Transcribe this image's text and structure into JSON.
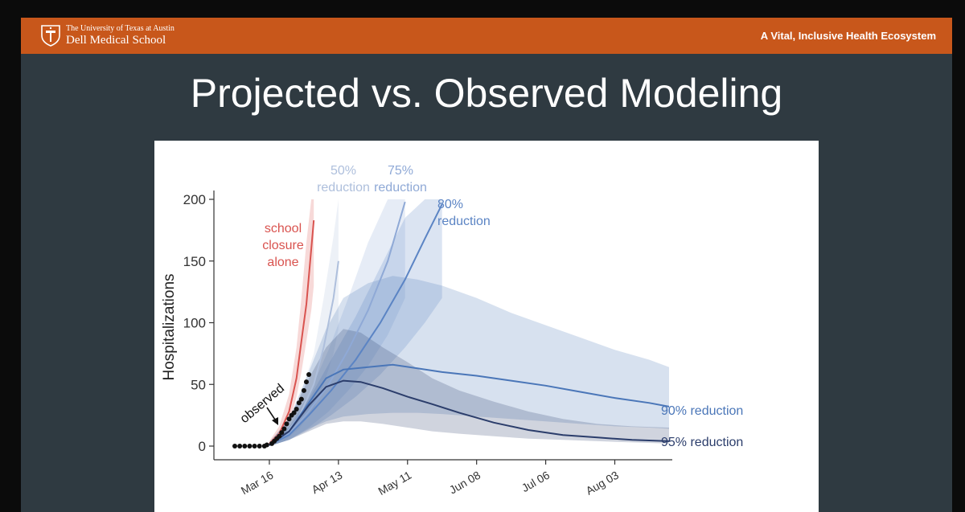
{
  "header": {
    "university": "The University of Texas at Austin",
    "school": "Dell Medical School",
    "tagline": "A Vital, Inclusive Health Ecosystem"
  },
  "slide": {
    "title": "Projected vs. Observed Modeling"
  },
  "colors": {
    "banner": "#c8571b",
    "slide_bg": "#2f3a41",
    "school_closure": "#d9534f",
    "reduction_50": "#aebfdc",
    "reduction_75": "#8fa9d6",
    "reduction_80": "#5b84c4",
    "reduction_90": "#4a76b8",
    "reduction_95": "#2b3d6b",
    "observed": "#111111"
  },
  "chart_data": {
    "type": "line",
    "xlabel": "",
    "ylabel": "Hospitalizations",
    "ylim": [
      0,
      200
    ],
    "yticks": [
      0,
      50,
      100,
      150,
      200
    ],
    "xlim": [
      "2020-03-02",
      "2020-08-25"
    ],
    "xticks": [
      {
        "date": "2020-03-16",
        "label": "Mar 16"
      },
      {
        "date": "2020-04-13",
        "label": "Apr 13"
      },
      {
        "date": "2020-05-11",
        "label": "May 11"
      },
      {
        "date": "2020-06-08",
        "label": "Jun 08"
      },
      {
        "date": "2020-07-06",
        "label": "Jul 06"
      },
      {
        "date": "2020-08-03",
        "label": "Aug 03"
      }
    ],
    "grid": false,
    "series": [
      {
        "name": "school closure alone",
        "label_lines": [
          "school",
          "closure",
          "alone"
        ],
        "color": "#d9534f",
        "x": [
          "2020-03-16",
          "2020-03-20",
          "2020-03-24",
          "2020-03-27",
          "2020-03-29",
          "2020-03-31",
          "2020-04-02",
          "2020-04-03"
        ],
        "y": [
          2,
          10,
          28,
          55,
          85,
          115,
          160,
          183
        ],
        "band_low": [
          1,
          6,
          18,
          40,
          60,
          85,
          110,
          130
        ],
        "band_high": [
          4,
          16,
          42,
          80,
          120,
          165,
          200,
          200
        ]
      },
      {
        "name": "50% reduction",
        "label_lines": [
          "50%",
          "reduction"
        ],
        "color": "#aebfdc",
        "x": [
          "2020-03-16",
          "2020-03-22",
          "2020-03-28",
          "2020-04-03",
          "2020-04-07",
          "2020-04-11",
          "2020-04-13"
        ],
        "y": [
          1,
          8,
          24,
          50,
          80,
          120,
          150
        ],
        "band_low": [
          0,
          4,
          14,
          30,
          50,
          75,
          95
        ],
        "band_high": [
          3,
          14,
          38,
          75,
          120,
          170,
          200
        ]
      },
      {
        "name": "75% reduction",
        "label_lines": [
          "75%",
          "reduction"
        ],
        "color": "#8fa9d6",
        "x": [
          "2020-03-16",
          "2020-03-24",
          "2020-04-01",
          "2020-04-09",
          "2020-04-17",
          "2020-04-25",
          "2020-05-03",
          "2020-05-10"
        ],
        "y": [
          1,
          10,
          28,
          50,
          78,
          110,
          150,
          198
        ],
        "band_low": [
          0,
          5,
          15,
          28,
          45,
          65,
          90,
          120
        ],
        "band_high": [
          3,
          16,
          42,
          78,
          120,
          165,
          200,
          200
        ]
      },
      {
        "name": "80% reduction",
        "label_lines": [
          "80%",
          "reduction"
        ],
        "color": "#5b84c4",
        "x": [
          "2020-03-16",
          "2020-03-24",
          "2020-04-01",
          "2020-04-10",
          "2020-04-20",
          "2020-04-30",
          "2020-05-10",
          "2020-05-18",
          "2020-05-25"
        ],
        "y": [
          1,
          9,
          25,
          45,
          70,
          100,
          135,
          168,
          196
        ],
        "band_low": [
          0,
          5,
          13,
          25,
          40,
          58,
          80,
          100,
          120
        ],
        "band_high": [
          3,
          15,
          38,
          70,
          105,
          145,
          185,
          200,
          200
        ]
      },
      {
        "name": "90% reduction",
        "color": "#4a76b8",
        "x": [
          "2020-03-16",
          "2020-03-24",
          "2020-04-01",
          "2020-04-08",
          "2020-04-15",
          "2020-04-25",
          "2020-05-05",
          "2020-05-15",
          "2020-05-25",
          "2020-06-08",
          "2020-06-22",
          "2020-07-06",
          "2020-07-20",
          "2020-08-03",
          "2020-08-17",
          "2020-08-25"
        ],
        "y": [
          1,
          12,
          35,
          55,
          62,
          64,
          66,
          63,
          60,
          57,
          53,
          49,
          44,
          39,
          35,
          32
        ],
        "band_low": [
          0,
          5,
          14,
          20,
          24,
          26,
          27,
          27,
          26,
          24,
          22,
          20,
          18,
          16,
          15,
          14
        ],
        "band_high": [
          3,
          22,
          60,
          95,
          120,
          132,
          138,
          135,
          130,
          120,
          108,
          98,
          88,
          78,
          70,
          64
        ]
      },
      {
        "name": "95% reduction",
        "color": "#2b3d6b",
        "x": [
          "2020-03-16",
          "2020-03-24",
          "2020-04-01",
          "2020-04-08",
          "2020-04-15",
          "2020-04-22",
          "2020-05-01",
          "2020-05-11",
          "2020-05-21",
          "2020-06-01",
          "2020-06-15",
          "2020-06-29",
          "2020-07-13",
          "2020-07-27",
          "2020-08-10",
          "2020-08-25"
        ],
        "y": [
          1,
          12,
          33,
          48,
          53,
          52,
          47,
          40,
          34,
          27,
          19,
          13,
          9,
          7,
          5,
          4
        ],
        "band_low": [
          0,
          5,
          12,
          18,
          20,
          20,
          18,
          15,
          12,
          10,
          8,
          6,
          5,
          4,
          3,
          2
        ],
        "band_high": [
          3,
          22,
          55,
          80,
          95,
          92,
          80,
          68,
          55,
          45,
          36,
          28,
          22,
          18,
          16,
          15
        ]
      }
    ],
    "observed": {
      "label": "observed",
      "x": [
        "2020-03-02",
        "2020-03-04",
        "2020-03-06",
        "2020-03-08",
        "2020-03-10",
        "2020-03-12",
        "2020-03-14",
        "2020-03-15",
        "2020-03-17",
        "2020-03-18",
        "2020-03-19",
        "2020-03-20",
        "2020-03-21",
        "2020-03-22",
        "2020-03-23",
        "2020-03-24",
        "2020-03-25",
        "2020-03-26",
        "2020-03-27",
        "2020-03-28",
        "2020-03-29",
        "2020-03-30",
        "2020-03-31",
        "2020-04-01"
      ],
      "y": [
        0,
        0,
        0,
        0,
        0,
        0,
        0,
        1,
        2,
        4,
        6,
        8,
        11,
        14,
        18,
        22,
        25,
        27,
        30,
        35,
        38,
        45,
        52,
        58
      ]
    }
  }
}
